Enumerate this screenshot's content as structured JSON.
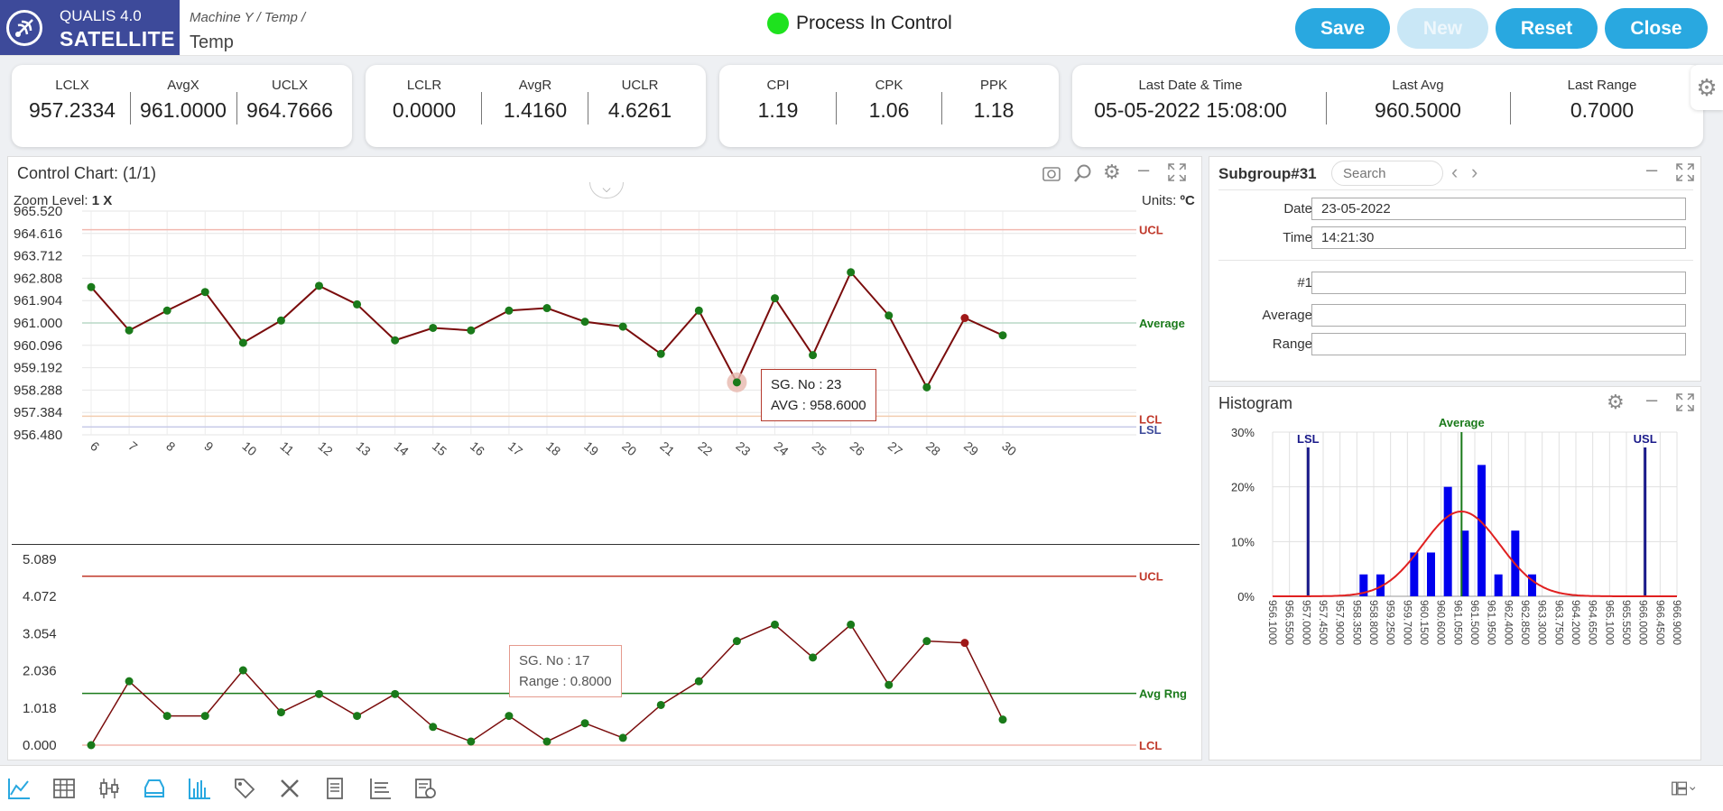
{
  "header": {
    "brand_line1": "QUALIS 4.0",
    "brand_line2": "SATELLITE",
    "breadcrumb": "Machine Y /  Temp /",
    "title": "Temp",
    "status_text": "Process In Control",
    "status_color": "#1ee21e",
    "buttons": {
      "save": "Save",
      "new": "New",
      "reset": "Reset",
      "close": "Close"
    }
  },
  "stats": {
    "x_limits": [
      {
        "label": "LCLX",
        "value": "957.2334"
      },
      {
        "label": "AvgX",
        "value": "961.0000"
      },
      {
        "label": "UCLX",
        "value": "964.7666"
      }
    ],
    "r_limits": [
      {
        "label": "LCLR",
        "value": "0.0000"
      },
      {
        "label": "AvgR",
        "value": "1.4160"
      },
      {
        "label": "UCLR",
        "value": "4.6261"
      }
    ],
    "capability": [
      {
        "label": "CPI",
        "value": "1.19"
      },
      {
        "label": "CPK",
        "value": "1.06"
      },
      {
        "label": "PPK",
        "value": "1.18"
      }
    ],
    "last": [
      {
        "label": "Last Date & Time",
        "value": "05-05-2022 15:08:00"
      },
      {
        "label": "Last Avg",
        "value": "960.5000"
      },
      {
        "label": "Last Range",
        "value": "0.7000"
      }
    ]
  },
  "control_chart": {
    "title": "Control Chart: (1/1)",
    "zoom_prefix": "Zoom Level: ",
    "zoom_value": "1 X",
    "units_prefix": "Units: ",
    "units_value": "ºC",
    "tooltip_x": {
      "line1": "SG. No : 23",
      "line2": "AVG : 958.6000"
    },
    "tooltip_r": {
      "line1": "SG. No : 17",
      "line2": "Range : 0.8000"
    }
  },
  "subgroup": {
    "title": "Subgroup#31",
    "search_placeholder": "Search",
    "fields": {
      "date_label": "Date",
      "date_value": "23-05-2022",
      "time_label": "Time",
      "time_value": "14:21:30",
      "r1_label": "#1",
      "r1_value": "",
      "avg_label": "Average",
      "avg_value": "",
      "range_label": "Range",
      "range_value": ""
    }
  },
  "histogram": {
    "title": "Histogram"
  },
  "colors": {
    "accent": "#29a8e0",
    "brand": "#3d4a9a",
    "line": "#7a0c0c",
    "point": "#1a7a1a",
    "ucl": "#c0392b",
    "avg": "#1a7a1a",
    "bar": "#0000ee",
    "curve": "#e02020"
  },
  "chart_data": [
    {
      "type": "line",
      "name": "X-bar chart",
      "x": [
        6,
        7,
        8,
        9,
        10,
        11,
        12,
        13,
        14,
        15,
        16,
        17,
        18,
        19,
        20,
        21,
        22,
        23,
        24,
        25,
        26,
        27,
        28,
        29,
        30
      ],
      "values": [
        962.45,
        960.7,
        961.5,
        962.25,
        960.2,
        961.1,
        962.5,
        961.75,
        960.3,
        960.8,
        960.7,
        961.5,
        961.6,
        961.05,
        960.85,
        959.75,
        961.5,
        958.6,
        962.0,
        959.7,
        963.05,
        961.3,
        958.4,
        961.2,
        960.5
      ],
      "y_ticks": [
        "965.520",
        "964.616",
        "963.712",
        "962.808",
        "961.904",
        "961.000",
        "960.096",
        "959.192",
        "958.288",
        "957.384",
        "956.480"
      ],
      "ylim": [
        956.48,
        965.52
      ],
      "ucl": 964.7666,
      "avg": 961.0,
      "lcl": 957.2334,
      "lsl": 956.8,
      "ref_labels": {
        "ucl": "UCL",
        "avg": "Average",
        "lcl": "LCL",
        "lsl": "LSL"
      },
      "highlight_index": 23,
      "alert_index": 23
    },
    {
      "type": "line",
      "name": "Range chart",
      "x": [
        6,
        7,
        8,
        9,
        10,
        11,
        12,
        13,
        14,
        15,
        16,
        17,
        18,
        19,
        20,
        21,
        22,
        23,
        24,
        25,
        26,
        27,
        28,
        29,
        30
      ],
      "values": [
        0.0,
        1.75,
        0.8,
        0.8,
        2.05,
        0.9,
        1.4,
        0.8,
        1.4,
        0.5,
        0.1,
        0.8,
        0.1,
        0.6,
        0.2,
        1.1,
        1.75,
        2.85,
        3.3,
        2.4,
        3.3,
        1.65,
        2.85,
        2.8,
        0.7
      ],
      "y_ticks": [
        "5.089",
        "4.072",
        "3.054",
        "2.036",
        "1.018",
        "0.000"
      ],
      "ylim": [
        0,
        5.089
      ],
      "ucl": 4.6261,
      "avg": 1.416,
      "lcl": 0.0,
      "ref_labels": {
        "ucl": "UCL",
        "avg": "Avg Rng",
        "lcl": "LCL"
      },
      "alert_index": 23
    },
    {
      "type": "bar",
      "name": "Histogram",
      "categories": [
        "956.1000",
        "956.5500",
        "957.0000",
        "957.4500",
        "957.9000",
        "958.3500",
        "958.8000",
        "959.2500",
        "959.7000",
        "960.1500",
        "960.6000",
        "961.0500",
        "961.5000",
        "961.9500",
        "962.4000",
        "962.8500",
        "963.3000",
        "963.7500",
        "964.2000",
        "964.6500",
        "965.1000",
        "965.5500",
        "966.0000",
        "966.4500",
        "966.9000"
      ],
      "values": [
        0,
        0,
        0,
        0,
        0,
        4,
        4,
        0,
        8,
        8,
        20,
        12,
        24,
        4,
        12,
        4,
        0,
        0,
        0,
        0,
        0,
        0,
        0,
        0,
        0
      ],
      "y_ticks": [
        "30%",
        "20%",
        "10%",
        "0%"
      ],
      "ylim": [
        0,
        30
      ],
      "lsl_label": "LSL",
      "usl_label": "USL",
      "avg_label": "Average",
      "lsl_index": 2,
      "usl_index": 22,
      "avg_index": 11,
      "curve_peak": 15.5
    }
  ],
  "toolbar": {
    "icons": [
      "line-chart-icon",
      "table-icon",
      "box-plot-icon",
      "layers-icon",
      "histogram-icon",
      "tag-edit-icon",
      "tools-icon",
      "document-icon",
      "bar-list-icon",
      "report-icon"
    ]
  }
}
